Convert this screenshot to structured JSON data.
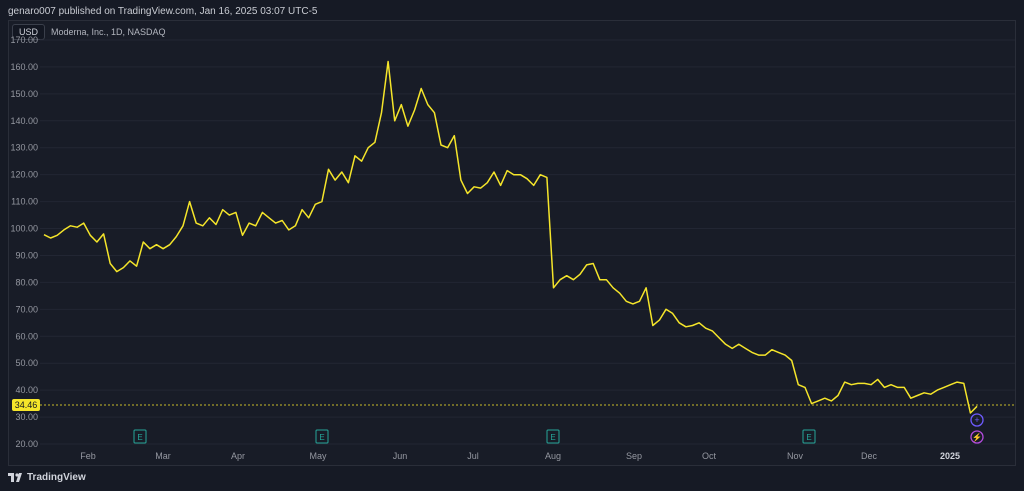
{
  "header": {
    "published_text": "genaro007 published on TradingView.com, Jan 16, 2025 03:07 UTC-5"
  },
  "currency_badge": "USD",
  "symbol_title": "Moderna, Inc., 1D, NASDAQ",
  "footer": {
    "brand": "TradingView",
    "logo_icon": "tradingview-logo-icon"
  },
  "colors": {
    "line": "#f5e52a",
    "background": "#161a25",
    "grid": "#222633",
    "label": "#9598a1",
    "earnings": "#26a69a",
    "price_tag": "#f5e52a"
  },
  "chart_data": {
    "type": "line",
    "series": [
      {
        "values": [
          97.7,
          96.5,
          97.5,
          99.5,
          101,
          100.5,
          102,
          97.5,
          95,
          98,
          87,
          84,
          85.5,
          88,
          86,
          95,
          92.5,
          94,
          92.5,
          94,
          97,
          101,
          110,
          102,
          101,
          104,
          101.5,
          107,
          105,
          106,
          97.5,
          102,
          101,
          106,
          104,
          102,
          103,
          99.5,
          101,
          107,
          104,
          109,
          110,
          122,
          118,
          121,
          117,
          127,
          125,
          130,
          132,
          143,
          162,
          140,
          146,
          138,
          144,
          152,
          146,
          143,
          131,
          130,
          134.5,
          118,
          113,
          115.5,
          115,
          117,
          121,
          116,
          121.5,
          120,
          120,
          118.5,
          116,
          120,
          119,
          78,
          81,
          82.5,
          81,
          83,
          86.5,
          87,
          81,
          81,
          78,
          76,
          73,
          72,
          73,
          78,
          64,
          66,
          70,
          68.5,
          65,
          63.5,
          64,
          65,
          63,
          62,
          59.5,
          57,
          55.5,
          57,
          55.5,
          54,
          53,
          53,
          55,
          54,
          53,
          51,
          42,
          41,
          35,
          36,
          37,
          36,
          38,
          43,
          42,
          42.5,
          42.5,
          42,
          44,
          41,
          42,
          41,
          41,
          37,
          38,
          39,
          38.5,
          40,
          41,
          42,
          43,
          42.5,
          31.5,
          34
        ]
      }
    ],
    "ylim": [
      17,
      170
    ],
    "yticks": [
      "20.00",
      "30.00",
      "40.00",
      "50.00",
      "60.00",
      "70.00",
      "80.00",
      "90.00",
      "100.00",
      "110.00",
      "120.00",
      "130.00",
      "140.00",
      "150.00",
      "160.00",
      "170.00"
    ],
    "xticks": [
      "Feb",
      "Mar",
      "Apr",
      "May",
      "Jun",
      "Jul",
      "Aug",
      "Sep",
      "Oct",
      "Nov",
      "Dec",
      "2025"
    ],
    "last_price": 34.46,
    "last_price_label": "34.46",
    "earnings_markers": [
      "E",
      "E",
      "E",
      "E"
    ],
    "grid": true
  }
}
